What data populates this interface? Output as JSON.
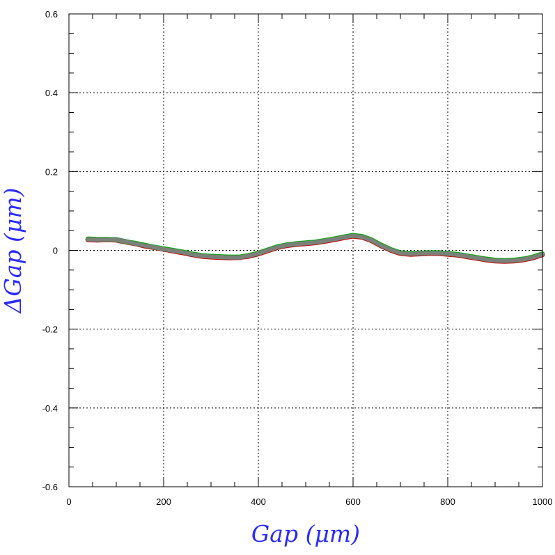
{
  "chart_data": {
    "type": "line",
    "xlabel": "Gap (μm)",
    "ylabel": "ΔGap (μm)",
    "xlim": [
      0,
      1000
    ],
    "ylim": [
      -0.6,
      0.6
    ],
    "x_ticks": [
      0,
      200,
      400,
      600,
      800,
      1000
    ],
    "x_tick_labels": [
      "0",
      "200",
      "400",
      "600",
      "800",
      "1000"
    ],
    "y_ticks": [
      -0.6,
      -0.4,
      -0.2,
      0,
      0.2,
      0.4,
      0.6
    ],
    "y_tick_labels": [
      "-0.6",
      "-0.4",
      "-0.2",
      "0",
      "0.2",
      "0.4",
      "0.6"
    ],
    "grid": true,
    "series": [
      {
        "color": "#0000cc",
        "x": [
          40,
          60,
          80,
          100,
          120,
          140,
          160,
          180,
          200,
          220,
          240,
          260,
          280,
          300,
          320,
          340,
          360,
          380,
          400,
          420,
          440,
          460,
          480,
          500,
          520,
          540,
          560,
          580,
          600,
          620,
          640,
          660,
          680,
          700,
          720,
          740,
          760,
          780,
          800,
          820,
          840,
          860,
          880,
          900,
          920,
          940,
          960,
          980,
          1000
        ],
        "y": [
          0.028,
          0.027,
          0.027,
          0.027,
          0.022,
          0.017,
          0.012,
          0.008,
          0.003,
          -0.001,
          -0.005,
          -0.01,
          -0.014,
          -0.016,
          -0.017,
          -0.018,
          -0.018,
          -0.014,
          -0.008,
          0.0,
          0.008,
          0.013,
          0.016,
          0.018,
          0.02,
          0.024,
          0.028,
          0.033,
          0.037,
          0.034,
          0.025,
          0.012,
          0.001,
          -0.007,
          -0.009,
          -0.008,
          -0.007,
          -0.007,
          -0.009,
          -0.011,
          -0.015,
          -0.019,
          -0.023,
          -0.026,
          -0.027,
          -0.026,
          -0.023,
          -0.018,
          -0.01
        ]
      },
      {
        "color": "#cc0000",
        "x": [
          40,
          60,
          80,
          100,
          120,
          140,
          160,
          180,
          200,
          220,
          240,
          260,
          280,
          300,
          320,
          340,
          360,
          380,
          400,
          420,
          440,
          460,
          480,
          500,
          520,
          540,
          560,
          580,
          600,
          620,
          640,
          660,
          680,
          700,
          720,
          740,
          760,
          780,
          800,
          820,
          840,
          860,
          880,
          900,
          920,
          940,
          960,
          980,
          1000
        ],
        "y": [
          0.027,
          0.026,
          0.027,
          0.026,
          0.021,
          0.017,
          0.011,
          0.007,
          0.003,
          -0.002,
          -0.006,
          -0.011,
          -0.015,
          -0.017,
          -0.018,
          -0.019,
          -0.018,
          -0.015,
          -0.009,
          -0.001,
          0.007,
          0.012,
          0.015,
          0.017,
          0.019,
          0.023,
          0.027,
          0.032,
          0.036,
          0.033,
          0.024,
          0.011,
          0.0,
          -0.008,
          -0.01,
          -0.009,
          -0.008,
          -0.008,
          -0.01,
          -0.012,
          -0.016,
          -0.02,
          -0.024,
          -0.027,
          -0.028,
          -0.027,
          -0.024,
          -0.019,
          -0.011
        ]
      },
      {
        "color": "#00aa00",
        "x": [
          40,
          60,
          80,
          100,
          120,
          140,
          160,
          180,
          200,
          220,
          240,
          260,
          280,
          300,
          320,
          340,
          360,
          380,
          400,
          420,
          440,
          460,
          480,
          500,
          520,
          540,
          560,
          580,
          600,
          620,
          640,
          660,
          680,
          700,
          720,
          740,
          760,
          780,
          800,
          820,
          840,
          860,
          880,
          900,
          920,
          940,
          960,
          980,
          1000
        ],
        "y": [
          0.029,
          0.028,
          0.028,
          0.027,
          0.022,
          0.018,
          0.013,
          0.008,
          0.004,
          0.0,
          -0.004,
          -0.009,
          -0.013,
          -0.015,
          -0.016,
          -0.017,
          -0.017,
          -0.013,
          -0.007,
          0.001,
          0.009,
          0.014,
          0.017,
          0.019,
          0.021,
          0.025,
          0.029,
          0.034,
          0.038,
          0.035,
          0.026,
          0.013,
          0.002,
          -0.006,
          -0.008,
          -0.007,
          -0.006,
          -0.006,
          -0.008,
          -0.01,
          -0.014,
          -0.018,
          -0.022,
          -0.025,
          -0.026,
          -0.025,
          -0.022,
          -0.017,
          -0.009
        ]
      },
      {
        "color": "#808080",
        "x": [
          40,
          60,
          80,
          100,
          120,
          140,
          160,
          180,
          200,
          220,
          240,
          260,
          280,
          300,
          320,
          340,
          360,
          380,
          400,
          420,
          440,
          460,
          480,
          500,
          520,
          540,
          560,
          580,
          600,
          620,
          640,
          660,
          680,
          700,
          720,
          740,
          760,
          780,
          800,
          820,
          840,
          860,
          880,
          900,
          920,
          940,
          960,
          980,
          1000
        ],
        "y": [
          0.028,
          0.027,
          0.027,
          0.027,
          0.022,
          0.017,
          0.012,
          0.008,
          0.003,
          -0.001,
          -0.005,
          -0.01,
          -0.014,
          -0.016,
          -0.017,
          -0.018,
          -0.018,
          -0.014,
          -0.008,
          0.0,
          0.008,
          0.013,
          0.016,
          0.018,
          0.02,
          0.024,
          0.028,
          0.033,
          0.037,
          0.034,
          0.025,
          0.012,
          0.001,
          -0.007,
          -0.009,
          -0.008,
          -0.007,
          -0.007,
          -0.009,
          -0.011,
          -0.015,
          -0.019,
          -0.023,
          -0.026,
          -0.027,
          -0.026,
          -0.023,
          -0.018,
          -0.01
        ]
      }
    ]
  }
}
